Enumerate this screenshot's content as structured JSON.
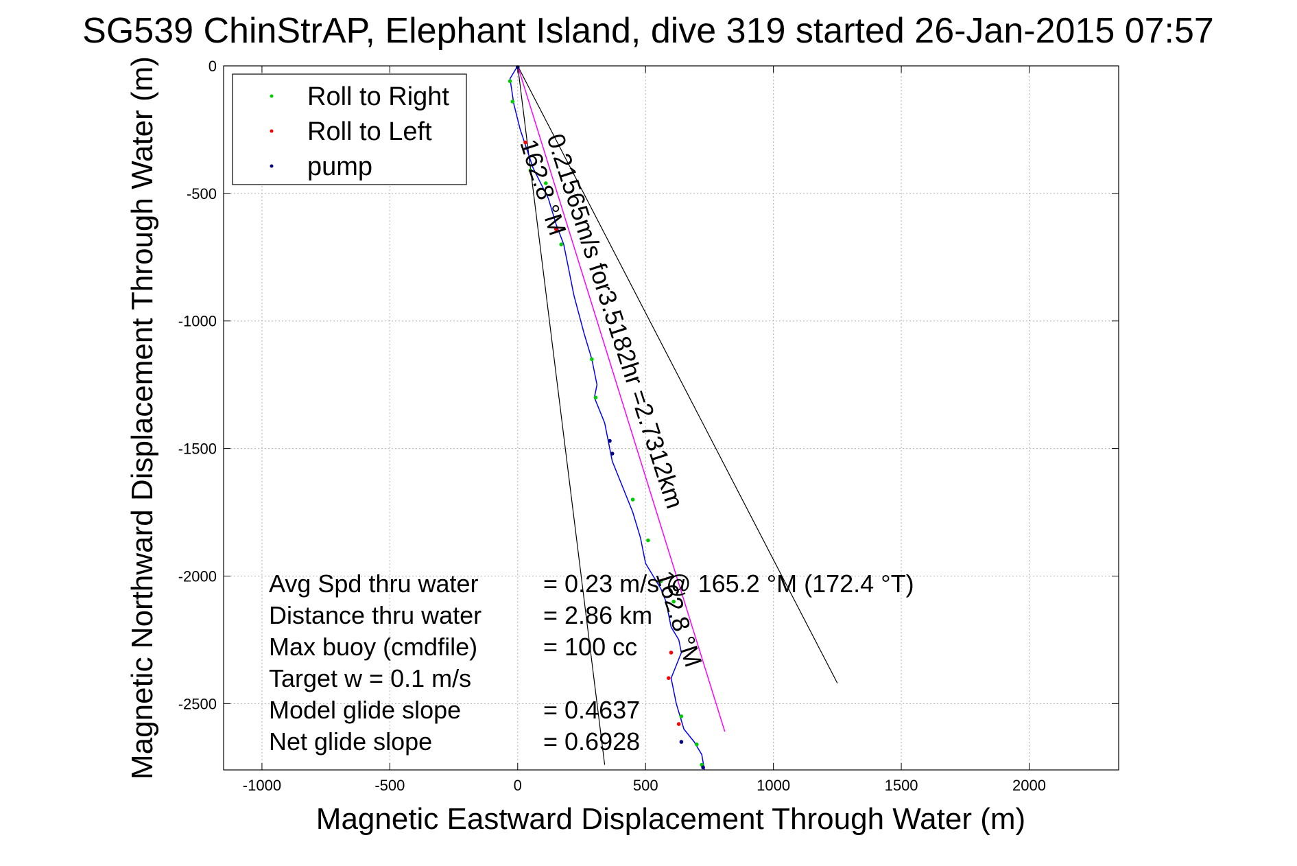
{
  "chart_data": {
    "type": "scatter",
    "title": "SG539 ChinStrAP, Elephant Island, dive 319 started 26-Jan-2015 07:57",
    "xlabel": "Magnetic Eastward Displacement Through Water (m)",
    "ylabel": "Magnetic Northward Displacement Through Water (m)",
    "xlim": [
      -1150,
      2350
    ],
    "ylim": [
      -2760,
      0
    ],
    "xticks": [
      -1000,
      -500,
      0,
      500,
      1000,
      1500,
      2000
    ],
    "xtick_labels": [
      "-1000",
      "-500",
      "0",
      "500",
      "1000",
      "1500",
      "2000"
    ],
    "yticks": [
      0,
      -500,
      -1000,
      -1500,
      -2000,
      -2500
    ],
    "ytick_labels": [
      "0",
      "-500",
      "-1000",
      "-1500",
      "-2000",
      "-2500"
    ],
    "grid": true,
    "legend_position": "top-left",
    "colors": {
      "track": "#0000ff",
      "roll_right": "#00cc00",
      "roll_left": "#ff0000",
      "pump": "#000080",
      "mean_heading": "#ff00ff",
      "cone": "#000000"
    },
    "legend": [
      {
        "label": "Roll to Right",
        "color": "#00cc00"
      },
      {
        "label": "Roll to Left",
        "color": "#ff0000"
      },
      {
        "label": "pump",
        "color": "#000080"
      }
    ],
    "track": {
      "x": [
        0,
        -30,
        -15,
        10,
        60,
        120,
        150,
        180,
        200,
        220,
        260,
        290,
        310,
        300,
        320,
        340,
        360,
        370,
        410,
        450,
        480,
        500,
        530,
        560,
        580,
        600,
        630,
        640,
        620,
        600,
        620,
        650,
        690,
        720,
        730
      ],
      "y": [
        0,
        -50,
        -150,
        -250,
        -400,
        -520,
        -620,
        -700,
        -800,
        -900,
        -1050,
        -1150,
        -1250,
        -1300,
        -1350,
        -1400,
        -1500,
        -1550,
        -1650,
        -1750,
        -1850,
        -1950,
        -2000,
        -2050,
        -2100,
        -2200,
        -2250,
        -2300,
        -2350,
        -2400,
        -2500,
        -2600,
        -2650,
        -2700,
        -2760
      ]
    },
    "roll_right": {
      "x": [
        -30,
        -20,
        50,
        110,
        170,
        290,
        305,
        450,
        510,
        560,
        610,
        640,
        700,
        720
      ],
      "y": [
        -60,
        -140,
        -410,
        -460,
        -700,
        -1150,
        -1300,
        -1700,
        -1860,
        -2020,
        -2100,
        -2550,
        -2660,
        -2740
      ]
    },
    "roll_left": {
      "x": [
        30,
        150,
        600,
        590,
        630
      ],
      "y": [
        -300,
        -640,
        -2300,
        -2400,
        -2580
      ]
    },
    "pump": {
      "x": [
        0,
        360,
        370,
        640,
        725
      ],
      "y": [
        -5,
        -1470,
        -1520,
        -2650,
        -2750
      ]
    },
    "mean_heading_line": {
      "x": [
        0,
        810
      ],
      "y": [
        0,
        -2610
      ]
    },
    "cone_lines": [
      {
        "x": [
          0,
          340
        ],
        "y": [
          0,
          -2740
        ]
      },
      {
        "x": [
          0,
          1250
        ],
        "y": [
          0,
          -2420
        ]
      }
    ],
    "annotations": {
      "speed_line": "0.21565m/s for3.5182hr =2.7312km",
      "heading_upper": "162.8 °M",
      "heading_lower": "162.8 °M"
    },
    "summary": [
      {
        "label": "Avg Spd thru water",
        "value": "=  0.23 m/s @ 165.2 °M (172.4 °T)"
      },
      {
        "label": "Distance thru water",
        "value": "=  2.86 km"
      },
      {
        "label": "Max buoy (cmdfile)",
        "value": "= 100 cc"
      },
      {
        "label": "Target w    = 0.1 m/s",
        "value": ""
      },
      {
        "label": "Model glide slope",
        "value": "= 0.4637"
      },
      {
        "label": "Net glide slope",
        "value": "= 0.6928"
      }
    ]
  }
}
